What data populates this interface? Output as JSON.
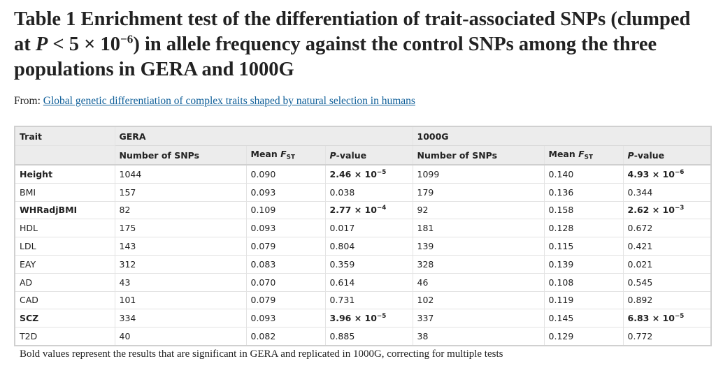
{
  "title": {
    "prefix": "Table 1 Enrichment test of the differentiation of trait-associated SNPs (clumped at ",
    "p_symbol": "P",
    "threshold": " < 5 × 10",
    "threshold_exp": "−6",
    "suffix": ") in allele frequency against the control SNPs among the three populations in GERA and 1000G"
  },
  "from": {
    "label": "From: ",
    "link_text": "Global genetic differentiation of complex traits shaped by natural selection in humans"
  },
  "table": {
    "trait_header": "Trait",
    "groups": [
      "GERA",
      "1000G"
    ],
    "subheaders": {
      "snps": "Number of SNPs",
      "mean_prefix": "Mean ",
      "fst_f": "F",
      "fst_sub": "ST",
      "p_italic": "P",
      "p_rest": "-value"
    },
    "rows": [
      {
        "trait": "Height",
        "bold": true,
        "g_n": "1044",
        "g_f": "0.090",
        "g_p": "2.46 × 10",
        "g_pe": "−5",
        "k_n": "1099",
        "k_f": "0.140",
        "k_p": "4.93 × 10",
        "k_pe": "−6"
      },
      {
        "trait": "BMI",
        "bold": false,
        "g_n": "157",
        "g_f": "0.093",
        "g_p": "0.038",
        "g_pe": "",
        "k_n": "179",
        "k_f": "0.136",
        "k_p": "0.344",
        "k_pe": ""
      },
      {
        "trait": "WHRadjBMI",
        "bold": true,
        "g_n": "82",
        "g_f": "0.109",
        "g_p": "2.77 × 10",
        "g_pe": "−4",
        "k_n": "92",
        "k_f": "0.158",
        "k_p": "2.62 × 10",
        "k_pe": "−3"
      },
      {
        "trait": "HDL",
        "bold": false,
        "g_n": "175",
        "g_f": "0.093",
        "g_p": "0.017",
        "g_pe": "",
        "k_n": "181",
        "k_f": "0.128",
        "k_p": "0.672",
        "k_pe": ""
      },
      {
        "trait": "LDL",
        "bold": false,
        "g_n": "143",
        "g_f": "0.079",
        "g_p": "0.804",
        "g_pe": "",
        "k_n": "139",
        "k_f": "0.115",
        "k_p": "0.421",
        "k_pe": ""
      },
      {
        "trait": "EAY",
        "bold": false,
        "g_n": "312",
        "g_f": "0.083",
        "g_p": "0.359",
        "g_pe": "",
        "k_n": "328",
        "k_f": "0.139",
        "k_p": "0.021",
        "k_pe": ""
      },
      {
        "trait": "AD",
        "bold": false,
        "g_n": "43",
        "g_f": "0.070",
        "g_p": "0.614",
        "g_pe": "",
        "k_n": "46",
        "k_f": "0.108",
        "k_p": "0.545",
        "k_pe": ""
      },
      {
        "trait": "CAD",
        "bold": false,
        "g_n": "101",
        "g_f": "0.079",
        "g_p": "0.731",
        "g_pe": "",
        "k_n": "102",
        "k_f": "0.119",
        "k_p": "0.892",
        "k_pe": ""
      },
      {
        "trait": "SCZ",
        "bold": true,
        "g_n": "334",
        "g_f": "0.093",
        "g_p": "3.96 × 10",
        "g_pe": "−5",
        "k_n": "337",
        "k_f": "0.145",
        "k_p": "6.83 × 10",
        "k_pe": "−5"
      },
      {
        "trait": "T2D",
        "bold": false,
        "g_n": "40",
        "g_f": "0.082",
        "g_p": "0.885",
        "g_pe": "",
        "k_n": "38",
        "k_f": "0.129",
        "k_p": "0.772",
        "k_pe": ""
      }
    ]
  },
  "footnote": "Bold values represent the results that are significant in GERA and replicated in 1000G, correcting for multiple tests",
  "colors": {
    "link": "#0f5f99",
    "header_bg": "#ececec",
    "border": "#d0d0d0"
  }
}
